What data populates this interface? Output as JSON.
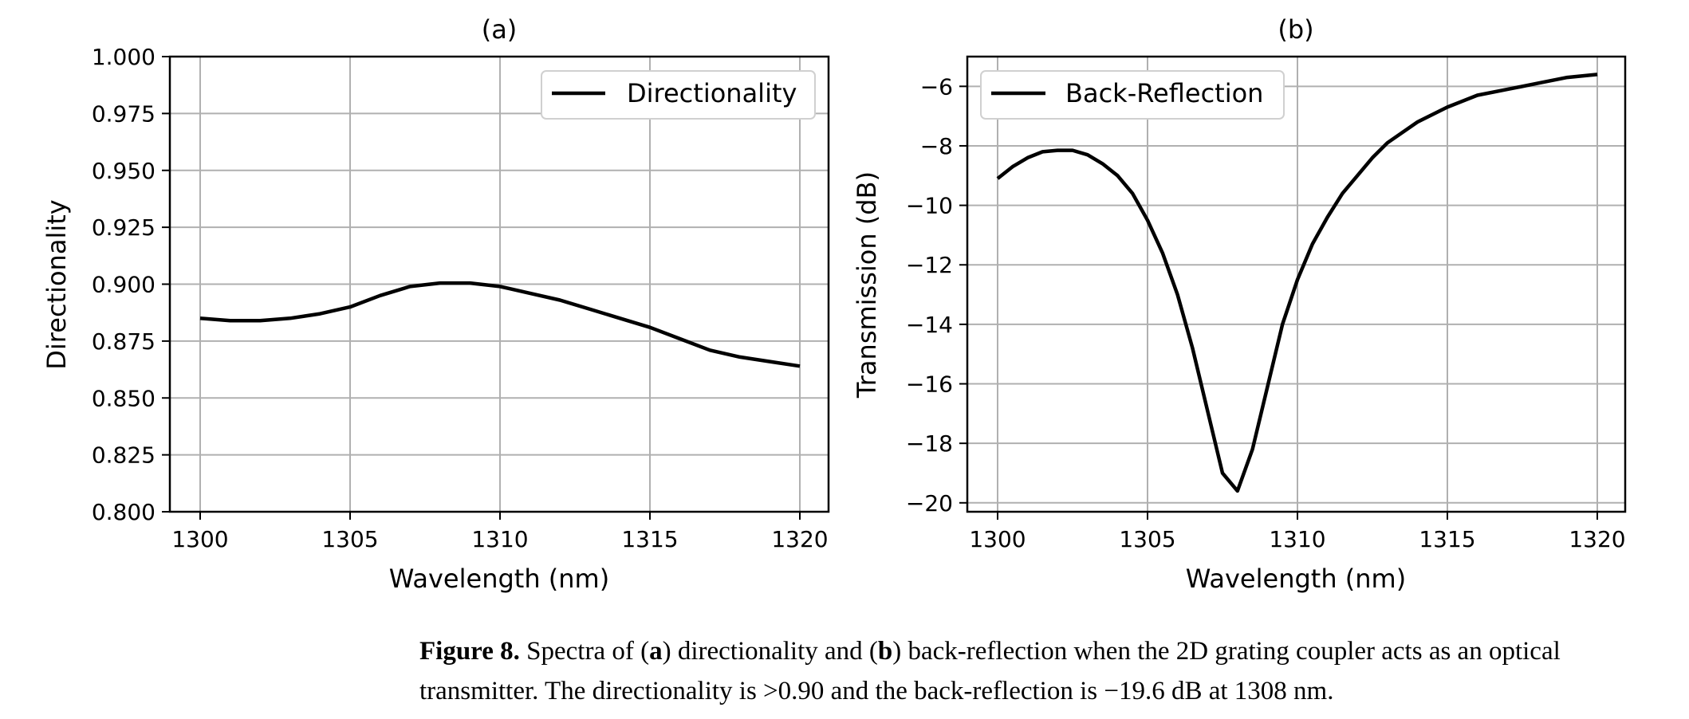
{
  "chart_data": [
    {
      "type": "line",
      "title": "(a)",
      "xlabel": "Wavelength (nm)",
      "ylabel": "Directionality",
      "xlim": [
        1300,
        1320
      ],
      "ylim": [
        0.8,
        1.0
      ],
      "xticks": [
        "1300",
        "1305",
        "1310",
        "1315",
        "1320"
      ],
      "yticks": [
        "0.800",
        "0.825",
        "0.850",
        "0.875",
        "0.900",
        "0.925",
        "0.950",
        "0.975",
        "1.000"
      ],
      "grid": true,
      "legend_position": "top-right",
      "series": [
        {
          "name": "Directionality",
          "color": "#000000",
          "x": [
            1300,
            1301,
            1302,
            1303,
            1304,
            1305,
            1306,
            1307,
            1308,
            1309,
            1310,
            1311,
            1312,
            1313,
            1314,
            1315,
            1316,
            1317,
            1318,
            1319,
            1320
          ],
          "y": [
            0.885,
            0.884,
            0.884,
            0.885,
            0.887,
            0.89,
            0.895,
            0.899,
            0.9005,
            0.9005,
            0.899,
            0.896,
            0.893,
            0.889,
            0.885,
            0.881,
            0.876,
            0.871,
            0.868,
            0.866,
            0.864
          ]
        }
      ]
    },
    {
      "type": "line",
      "title": "(b)",
      "xlabel": "Wavelength (nm)",
      "ylabel": "Transmission (dB)",
      "xlim": [
        1300,
        1320
      ],
      "ylim": [
        -20.3,
        -5.0
      ],
      "xticks": [
        "1300",
        "1305",
        "1310",
        "1315",
        "1320"
      ],
      "yticks": [
        "−20",
        "−18",
        "−16",
        "−14",
        "−12",
        "−10",
        "−8",
        "−6"
      ],
      "grid": true,
      "legend_position": "top-left",
      "series": [
        {
          "name": "Back-Reflection",
          "color": "#000000",
          "x": [
            1300,
            1300.5,
            1301,
            1301.5,
            1302,
            1302.5,
            1303,
            1303.5,
            1304,
            1304.5,
            1305,
            1305.5,
            1306,
            1306.5,
            1307,
            1307.5,
            1308,
            1308.5,
            1309,
            1309.5,
            1310,
            1310.5,
            1311,
            1311.5,
            1312,
            1312.5,
            1313,
            1314,
            1315,
            1316,
            1317,
            1318,
            1319,
            1320
          ],
          "y": [
            -9.1,
            -8.7,
            -8.4,
            -8.2,
            -8.15,
            -8.15,
            -8.3,
            -8.6,
            -9.0,
            -9.6,
            -10.5,
            -11.6,
            -13.0,
            -14.8,
            -16.9,
            -19.0,
            -19.6,
            -18.2,
            -16.1,
            -14.0,
            -12.5,
            -11.3,
            -10.4,
            -9.6,
            -9.0,
            -8.4,
            -7.9,
            -7.2,
            -6.7,
            -6.3,
            -6.1,
            -5.9,
            -5.7,
            -5.6
          ]
        }
      ]
    }
  ],
  "caption": {
    "label": "Figure 8.",
    "parts": [
      " Spectra of (",
      "a",
      ") directionality and (",
      "b",
      ") back-reflection when the 2D grating coupler acts as an optical transmitter. The directionality is >0.90 and the back-reflection is −19.6 dB at 1308 nm."
    ]
  }
}
